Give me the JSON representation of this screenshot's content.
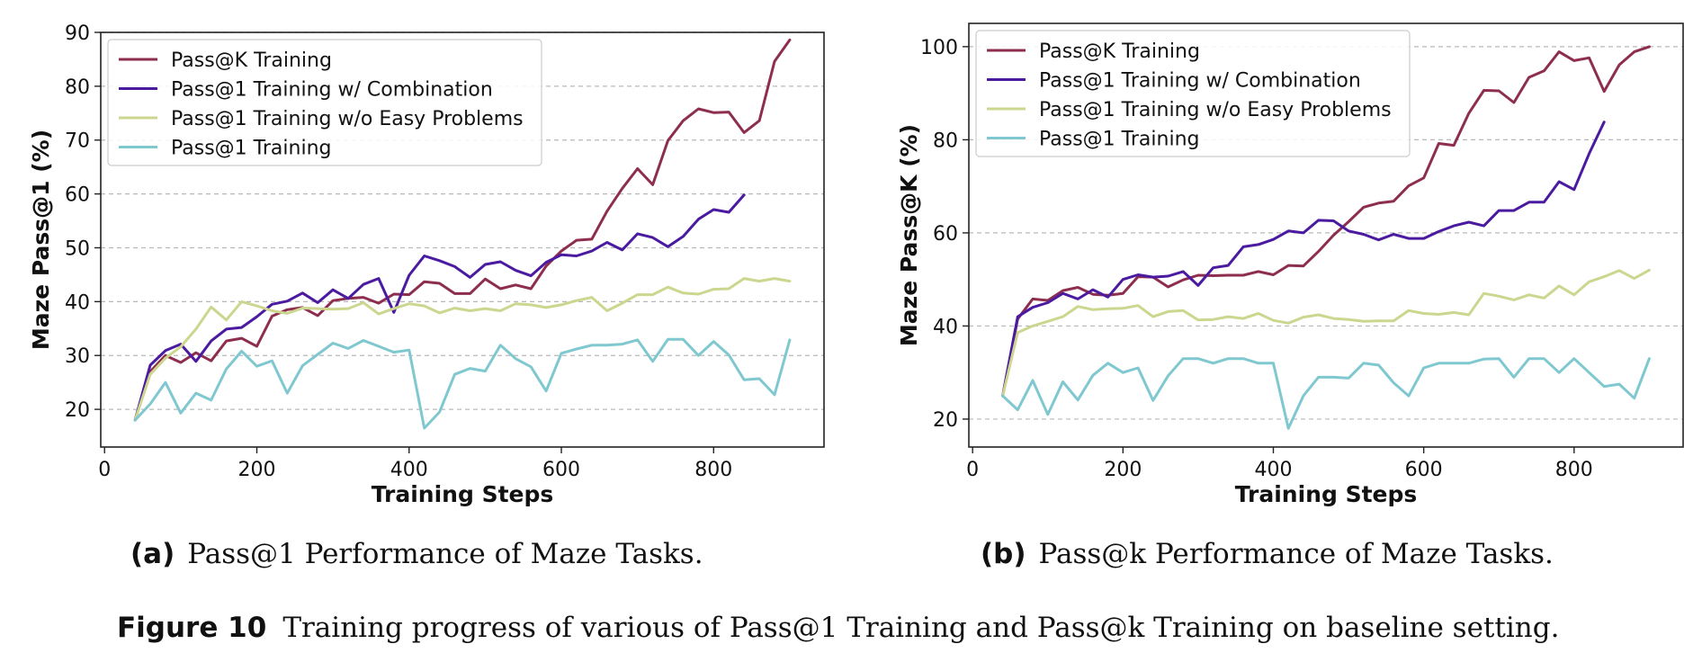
{
  "chart_data": [
    {
      "type": "line",
      "xlabel": "Training Steps",
      "ylabel": "Maze Pass@1 (%)",
      "xlim": [
        -5,
        945
      ],
      "ylim": [
        13,
        90
      ],
      "xticks": [
        0,
        200,
        400,
        600,
        800
      ],
      "yticks": [
        20,
        30,
        40,
        50,
        60,
        70,
        80,
        90
      ],
      "grid": "horizontal dashed",
      "legend": "top-left",
      "series": [
        {
          "name": "Pass@K Training",
          "color": "#8e2e4f",
          "x": [
            40,
            60,
            80,
            100,
            120,
            140,
            160,
            180,
            200,
            220,
            240,
            260,
            280,
            300,
            320,
            340,
            360,
            380,
            400,
            420,
            440,
            460,
            480,
            500,
            520,
            540,
            560,
            580,
            600,
            620,
            640,
            660,
            680,
            700,
            720,
            740,
            760,
            780,
            800,
            820,
            840,
            860,
            880,
            900
          ],
          "y": [
            18,
            27,
            30,
            28.7,
            30.5,
            29,
            32.7,
            33.2,
            31.7,
            37.3,
            38.5,
            38.9,
            37.4,
            40.2,
            40.6,
            40.8,
            39.7,
            41.4,
            41.3,
            43.7,
            43.4,
            41.5,
            41.5,
            44.2,
            42.4,
            43.1,
            42.4,
            46.6,
            49.4,
            51.4,
            51.6,
            56.8,
            61,
            64.7,
            61.7,
            69.9,
            73.6,
            75.8,
            75.1,
            75.2,
            71.4,
            73.6,
            84.6,
            88.6
          ]
        },
        {
          "name": "Pass@1 Training w/ Combination",
          "color": "#4a1aa0",
          "x": [
            40,
            60,
            80,
            100,
            120,
            140,
            160,
            180,
            200,
            220,
            240,
            260,
            280,
            300,
            320,
            340,
            360,
            380,
            400,
            420,
            440,
            460,
            480,
            500,
            520,
            540,
            560,
            580,
            600,
            620,
            640,
            660,
            680,
            700,
            720,
            740,
            760,
            780,
            800,
            820,
            840
          ],
          "y": [
            18,
            28.2,
            30.9,
            32.1,
            28.9,
            32.7,
            34.9,
            35.2,
            37.2,
            39.5,
            40.1,
            41.6,
            39.8,
            42.2,
            40.6,
            43.2,
            44.3,
            38,
            44.9,
            48.5,
            47.6,
            46.5,
            44.5,
            46.9,
            47.4,
            45.8,
            44.8,
            47.3,
            48.7,
            48.5,
            49.4,
            51,
            49.6,
            52.6,
            51.9,
            50.2,
            52.1,
            55.3,
            57.1,
            56.6,
            59.8
          ]
        },
        {
          "name": "Pass@1 Training w/o Easy Problems",
          "color": "#ccd68e",
          "x": [
            40,
            60,
            80,
            100,
            120,
            140,
            160,
            180,
            200,
            220,
            240,
            260,
            280,
            300,
            320,
            340,
            360,
            380,
            400,
            420,
            440,
            460,
            480,
            500,
            520,
            540,
            560,
            580,
            600,
            620,
            640,
            660,
            680,
            700,
            720,
            740,
            760,
            780,
            800,
            820,
            840,
            860,
            880,
            900
          ],
          "y": [
            18,
            26.5,
            29.5,
            31.6,
            34.9,
            39,
            36.6,
            40,
            39.2,
            38.3,
            37.8,
            38.8,
            38.7,
            38.6,
            38.7,
            39.8,
            37.7,
            38.7,
            39.6,
            39.2,
            37.9,
            38.8,
            38.3,
            38.7,
            38.3,
            39.6,
            39.4,
            38.9,
            39.4,
            40.2,
            40.8,
            38.3,
            39.7,
            41.3,
            41.3,
            42.7,
            41.6,
            41.4,
            42.3,
            42.4,
            44.3,
            43.8,
            44.3,
            43.8
          ]
        },
        {
          "name": "Pass@1 Training",
          "color": "#7fc8d0",
          "x": [
            40,
            60,
            80,
            100,
            120,
            140,
            160,
            180,
            200,
            220,
            240,
            260,
            280,
            300,
            320,
            340,
            360,
            380,
            400,
            420,
            440,
            460,
            480,
            500,
            520,
            540,
            560,
            580,
            600,
            620,
            640,
            660,
            680,
            700,
            720,
            740,
            760,
            780,
            800,
            820,
            840,
            860,
            880,
            900
          ],
          "y": [
            18,
            21,
            25,
            19.3,
            23,
            21.7,
            27.5,
            30.8,
            28,
            29,
            23,
            28.1,
            30.2,
            32.3,
            31.3,
            32.8,
            31.7,
            30.6,
            31,
            16.5,
            19.5,
            26.5,
            27.6,
            27.1,
            31.9,
            29.4,
            27.9,
            23.4,
            30.4,
            31.2,
            31.9,
            31.9,
            32.1,
            32.9,
            28.9,
            33,
            33,
            30,
            32.6,
            30.1,
            25.5,
            25.7,
            22.7,
            32.9
          ]
        }
      ]
    },
    {
      "type": "line",
      "xlabel": "Training Steps",
      "ylabel": "Maze Pass@K (%)",
      "xlim": [
        -5,
        945
      ],
      "ylim": [
        14,
        105
      ],
      "xticks": [
        0,
        200,
        400,
        600,
        800
      ],
      "yticks": [
        20,
        40,
        60,
        80,
        100
      ],
      "grid": "horizontal dashed",
      "legend": "top-left",
      "series": [
        {
          "name": "Pass@K Training",
          "color": "#8e2e4f",
          "x": [
            40,
            60,
            80,
            100,
            120,
            140,
            160,
            180,
            200,
            220,
            240,
            260,
            280,
            300,
            320,
            340,
            360,
            380,
            400,
            420,
            440,
            460,
            480,
            500,
            520,
            540,
            560,
            580,
            600,
            620,
            640,
            660,
            680,
            700,
            720,
            740,
            760,
            780,
            800,
            820,
            840,
            860,
            880,
            900
          ],
          "y": [
            25,
            41.5,
            45.8,
            45.5,
            47.6,
            48.3,
            46.8,
            46.6,
            47,
            50.6,
            50.5,
            48.4,
            49.9,
            50.9,
            50.8,
            50.9,
            50.9,
            51.7,
            51,
            53,
            52.9,
            56,
            59.5,
            62.4,
            65.5,
            66.4,
            66.8,
            70.1,
            71.8,
            79.2,
            78.8,
            85.7,
            90.6,
            90.5,
            88,
            93.4,
            94.8,
            98.9,
            97,
            97.6,
            90.4,
            96.1,
            98.9,
            100
          ]
        },
        {
          "name": "Pass@1 Training w/ Combination",
          "color": "#4a1aa0",
          "x": [
            40,
            60,
            80,
            100,
            120,
            140,
            160,
            180,
            200,
            220,
            240,
            260,
            280,
            300,
            320,
            340,
            360,
            380,
            400,
            420,
            440,
            460,
            480,
            500,
            520,
            540,
            560,
            580,
            600,
            620,
            640,
            660,
            680,
            700,
            720,
            740,
            760,
            780,
            800,
            820,
            840
          ],
          "y": [
            25,
            42,
            44,
            45,
            47,
            45.8,
            47.8,
            46.2,
            50,
            51,
            50.5,
            50.7,
            51.7,
            48.7,
            52.5,
            53,
            57,
            57.5,
            58.6,
            60.4,
            60,
            62.7,
            62.6,
            60.4,
            59.7,
            58.5,
            59.7,
            58.8,
            58.8,
            60.3,
            61.5,
            62.3,
            61.5,
            64.8,
            64.8,
            66.6,
            66.6,
            71,
            69.3,
            77,
            83.8
          ]
        },
        {
          "name": "Pass@1 Training w/o Easy Problems",
          "color": "#ccd68e",
          "x": [
            40,
            60,
            80,
            100,
            120,
            140,
            160,
            180,
            200,
            220,
            240,
            260,
            280,
            300,
            320,
            340,
            360,
            380,
            400,
            420,
            440,
            460,
            480,
            500,
            520,
            540,
            560,
            580,
            600,
            620,
            640,
            660,
            680,
            700,
            720,
            740,
            760,
            780,
            800,
            820,
            840,
            860,
            880,
            900
          ],
          "y": [
            25,
            38.6,
            40,
            41,
            42,
            44.2,
            43.5,
            43.7,
            43.8,
            44.4,
            42,
            43.1,
            43.3,
            41.3,
            41.4,
            42,
            41.6,
            42.7,
            41.2,
            40.6,
            41.9,
            42.4,
            41.6,
            41.4,
            41,
            41.1,
            41.1,
            43.3,
            42.7,
            42.5,
            42.9,
            42.4,
            47,
            46.4,
            45.6,
            46.7,
            46,
            48.6,
            46.7,
            49.5,
            50.6,
            51.9,
            50.2,
            52
          ]
        },
        {
          "name": "Pass@1 Training",
          "color": "#7fc8d0",
          "x": [
            40,
            60,
            80,
            100,
            120,
            140,
            160,
            180,
            200,
            220,
            240,
            260,
            280,
            300,
            320,
            340,
            360,
            380,
            400,
            420,
            440,
            460,
            480,
            500,
            520,
            540,
            560,
            580,
            600,
            620,
            640,
            660,
            680,
            700,
            720,
            740,
            760,
            780,
            800,
            820,
            840,
            860,
            880,
            900
          ],
          "y": [
            25,
            22,
            28.3,
            21,
            28,
            24.1,
            29.4,
            32,
            30,
            31,
            24,
            29.3,
            33,
            33,
            32,
            33,
            33,
            32,
            32,
            18,
            25,
            29,
            29,
            28.8,
            32,
            31.6,
            27.8,
            25,
            31,
            32,
            32,
            32,
            32.9,
            33,
            29,
            33,
            33,
            30,
            33,
            30,
            27,
            27.5,
            24.5,
            33
          ]
        }
      ]
    }
  ],
  "captions": {
    "a_tag": "(a)",
    "a_text": "Pass@1 Performance of Maze Tasks.",
    "b_tag": "(b)",
    "b_text": "Pass@k Performance of Maze Tasks.",
    "figure_tag": "Figure 10",
    "figure_text": "Training progress of various of Pass@1 Training and Pass@k Training on baseline setting."
  }
}
